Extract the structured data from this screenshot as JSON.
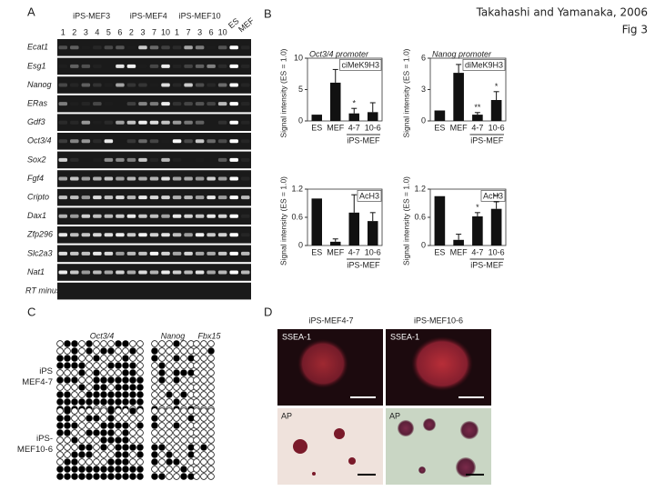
{
  "citation": {
    "line1": "Takahashi and Yamanaka, 2006",
    "line2": "Fig 3"
  },
  "panel_a": {
    "label": "A",
    "groups": [
      "iPS-MEF3",
      "iPS-MEF4",
      "iPS-MEF10",
      "ES",
      "MEF"
    ],
    "lanes": [
      "1",
      "2",
      "3",
      "4",
      "5",
      "6",
      "2",
      "3",
      "7",
      "10",
      "1",
      "7",
      "3",
      "6",
      "10"
    ],
    "genes": [
      "Ecat1",
      "Esg1",
      "Nanog",
      "ERas",
      "Gdf3",
      "Oct3/4",
      "Sox2",
      "Fgf4",
      "Cripto",
      "Dax1",
      "Zfp296",
      "Slc2a3",
      "Nat1"
    ],
    "rt_minus": "RT minus"
  },
  "panel_b": {
    "label": "B"
  },
  "chart_data": [
    {
      "type": "bar",
      "title": "Oct3/4 promoter",
      "label": "ciMeK9H3",
      "y_label": "Signal intensity (ES = 1.0)",
      "categories": [
        "ES",
        "MEF",
        "4-7",
        "10-6"
      ],
      "group_label": "iPS-MEF",
      "values": [
        1,
        6.1,
        1.2,
        1.4
      ],
      "errors": [
        0,
        2.1,
        0.8,
        1.5
      ],
      "annotations": [
        {
          "text": "*",
          "category": "4-7"
        }
      ],
      "ylim": [
        0,
        10
      ],
      "yticks": [
        0,
        5,
        10
      ],
      "color": "#111"
    },
    {
      "type": "bar",
      "title": "Nanog promoter",
      "label": "diMeK9H3",
      "y_label": "Signal intensity (ES = 1.0)",
      "categories": [
        "ES",
        "MEF",
        "4-7",
        "10-6"
      ],
      "group_label": "iPS-MEF",
      "values": [
        1,
        4.6,
        0.6,
        2
      ],
      "errors": [
        0,
        0.8,
        0.2,
        0.8
      ],
      "annotations": [
        {
          "text": "**",
          "category": "4-7"
        },
        {
          "text": "*",
          "category": "10-6"
        }
      ],
      "ylim": [
        0,
        6
      ],
      "yticks": [
        0,
        3,
        6
      ],
      "color": "#111"
    },
    {
      "type": "bar",
      "label": "AcH3",
      "y_label": "Signal intensity (ES = 1.0)",
      "categories": [
        "ES",
        "MEF",
        "4-7",
        "10-6"
      ],
      "group_label": "iPS-MEF",
      "values": [
        1,
        0.08,
        0.7,
        0.52
      ],
      "errors": [
        0,
        0.06,
        0.38,
        0.18
      ],
      "annotations": [],
      "ylim": [
        0,
        1.2
      ],
      "yticks": [
        0,
        0.6,
        1.2
      ],
      "color": "#111"
    },
    {
      "type": "bar",
      "label": "AcH3",
      "y_label": "Signal intensity (ES = 1.0)",
      "categories": [
        "ES",
        "MEF",
        "4-7",
        "10-6"
      ],
      "group_label": "iPS-MEF",
      "values": [
        1.05,
        0.12,
        0.62,
        0.78
      ],
      "errors": [
        0,
        0.12,
        0.08,
        0.15
      ],
      "annotations": [
        {
          "text": "*",
          "category": "4-7"
        },
        {
          "text": "**",
          "category": "10-6"
        }
      ],
      "ylim": [
        0,
        1.2
      ],
      "yticks": [
        0,
        0.6,
        1.2
      ],
      "color": "#111"
    }
  ],
  "panel_c": {
    "label": "C",
    "genes": [
      "Oct3/4",
      "Nanog",
      "Fbx15"
    ],
    "rows": [
      "iPS\nMEF4-7",
      "iPS-\nMEF10-6"
    ]
  },
  "panel_d": {
    "label": "D",
    "columns": [
      "iPS-MEF4-7",
      "iPS-MEF10-6"
    ],
    "rows": [
      "SSEA-1",
      "AP"
    ]
  }
}
